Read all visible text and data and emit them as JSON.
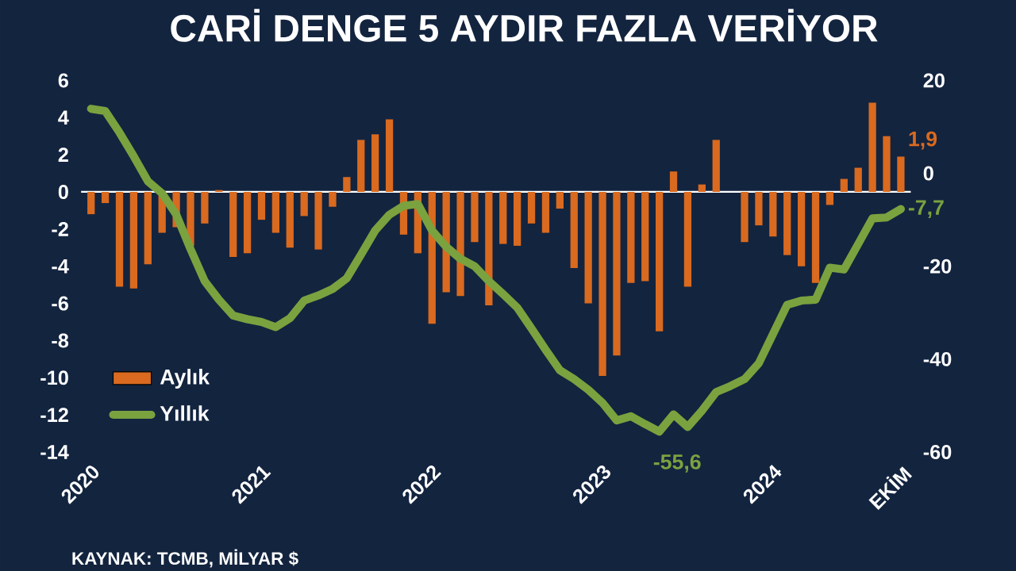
{
  "chart_data": {
    "type": "bar",
    "title": "CARİ DENGE 5 AYDIR FAZLA VERİYOR",
    "annotations": [
      "KAYNAK: TCMB, MİLYAR $"
    ],
    "categories": [
      "2020",
      null,
      null,
      null,
      null,
      null,
      null,
      null,
      null,
      null,
      null,
      null,
      "2021",
      null,
      null,
      null,
      null,
      null,
      null,
      null,
      null,
      null,
      null,
      null,
      "2022",
      null,
      null,
      null,
      null,
      null,
      null,
      null,
      null,
      null,
      null,
      null,
      "2023",
      null,
      null,
      null,
      null,
      null,
      null,
      null,
      null,
      null,
      null,
      null,
      "2024",
      null,
      null,
      null,
      null,
      null,
      null,
      null,
      null,
      "EKİM"
    ],
    "series": [
      {
        "name": "Aylık",
        "color": "#d96a1f",
        "values": [
          -1.2,
          -0.6,
          -5.1,
          -5.2,
          -3.9,
          -2.2,
          -1.9,
          -2.9,
          -1.7,
          0.1,
          -3.5,
          -3.3,
          -1.5,
          -2.2,
          -3.0,
          -1.3,
          -3.1,
          -0.8,
          0.8,
          2.8,
          3.1,
          3.9,
          -2.3,
          -3.3,
          -7.1,
          -5.4,
          -5.6,
          -2.7,
          -6.1,
          -2.8,
          -2.9,
          -1.7,
          -2.2,
          -0.9,
          -4.1,
          -6.0,
          -9.9,
          -8.8,
          -4.9,
          -4.8,
          -7.5,
          1.1,
          -5.1,
          0.4,
          2.8,
          0,
          -2.7,
          -1.8,
          -2.4,
          -3.4,
          -4.0,
          -4.9,
          -0.7,
          0.7,
          1.3,
          4.8,
          3.0,
          1.9
        ],
        "value_labels": [
          null,
          null,
          null,
          null,
          null,
          null,
          null,
          null,
          null,
          null,
          null,
          null,
          null,
          null,
          null,
          null,
          null,
          null,
          null,
          null,
          null,
          null,
          null,
          null,
          null,
          null,
          null,
          null,
          null,
          null,
          null,
          null,
          null,
          null,
          null,
          null,
          null,
          null,
          null,
          null,
          null,
          null,
          null,
          null,
          null,
          null,
          null,
          null,
          null,
          null,
          null,
          null,
          null,
          null,
          null,
          null,
          null,
          "1,9"
        ]
      },
      {
        "name": "Yıllık",
        "type": "line",
        "axis": "y2",
        "color": "#7aa23f",
        "values": [
          13.9,
          13.4,
          8.8,
          3.7,
          -1.7,
          -4.3,
          -8.9,
          -16.3,
          -23.2,
          -27.2,
          -30.6,
          -31.4,
          -32.0,
          -33.1,
          -31.2,
          -27.4,
          -26.3,
          -24.9,
          -22.6,
          -17.5,
          -12.3,
          -8.9,
          -7.0,
          -6.6,
          -12.3,
          -15.8,
          -18.4,
          -20.0,
          -23.2,
          -26.0,
          -28.9,
          -33.4,
          -38.0,
          -42.4,
          -44.3,
          -46.6,
          -49.4,
          -53.2,
          -52.3,
          -54.0,
          -55.6,
          -51.9,
          -54.6,
          -51.1,
          -47.1,
          -45.8,
          -44.3,
          -40.9,
          -34.6,
          -28.3,
          -27.4,
          -27.2,
          -20.3,
          -20.7,
          -15.2,
          -9.7,
          -9.5,
          -7.7
        ],
        "value_labels": [
          null,
          null,
          null,
          null,
          null,
          null,
          null,
          null,
          null,
          null,
          null,
          null,
          null,
          null,
          null,
          null,
          null,
          null,
          null,
          null,
          null,
          null,
          null,
          null,
          null,
          null,
          null,
          null,
          null,
          null,
          null,
          null,
          null,
          null,
          null,
          null,
          null,
          null,
          null,
          null,
          "-55,6",
          null,
          null,
          null,
          null,
          null,
          null,
          null,
          null,
          null,
          null,
          null,
          null,
          null,
          null,
          null,
          null,
          "-7,7"
        ]
      }
    ],
    "ylim": [
      -14,
      6
    ],
    "yticks": [
      -14,
      -12,
      -10,
      -8,
      -6,
      -4,
      -2,
      0,
      2,
      4,
      6
    ],
    "y2lim": [
      -60,
      20
    ],
    "y2ticks": [
      -60,
      -40,
      -20,
      0,
      20
    ],
    "legend": "bottom left"
  }
}
